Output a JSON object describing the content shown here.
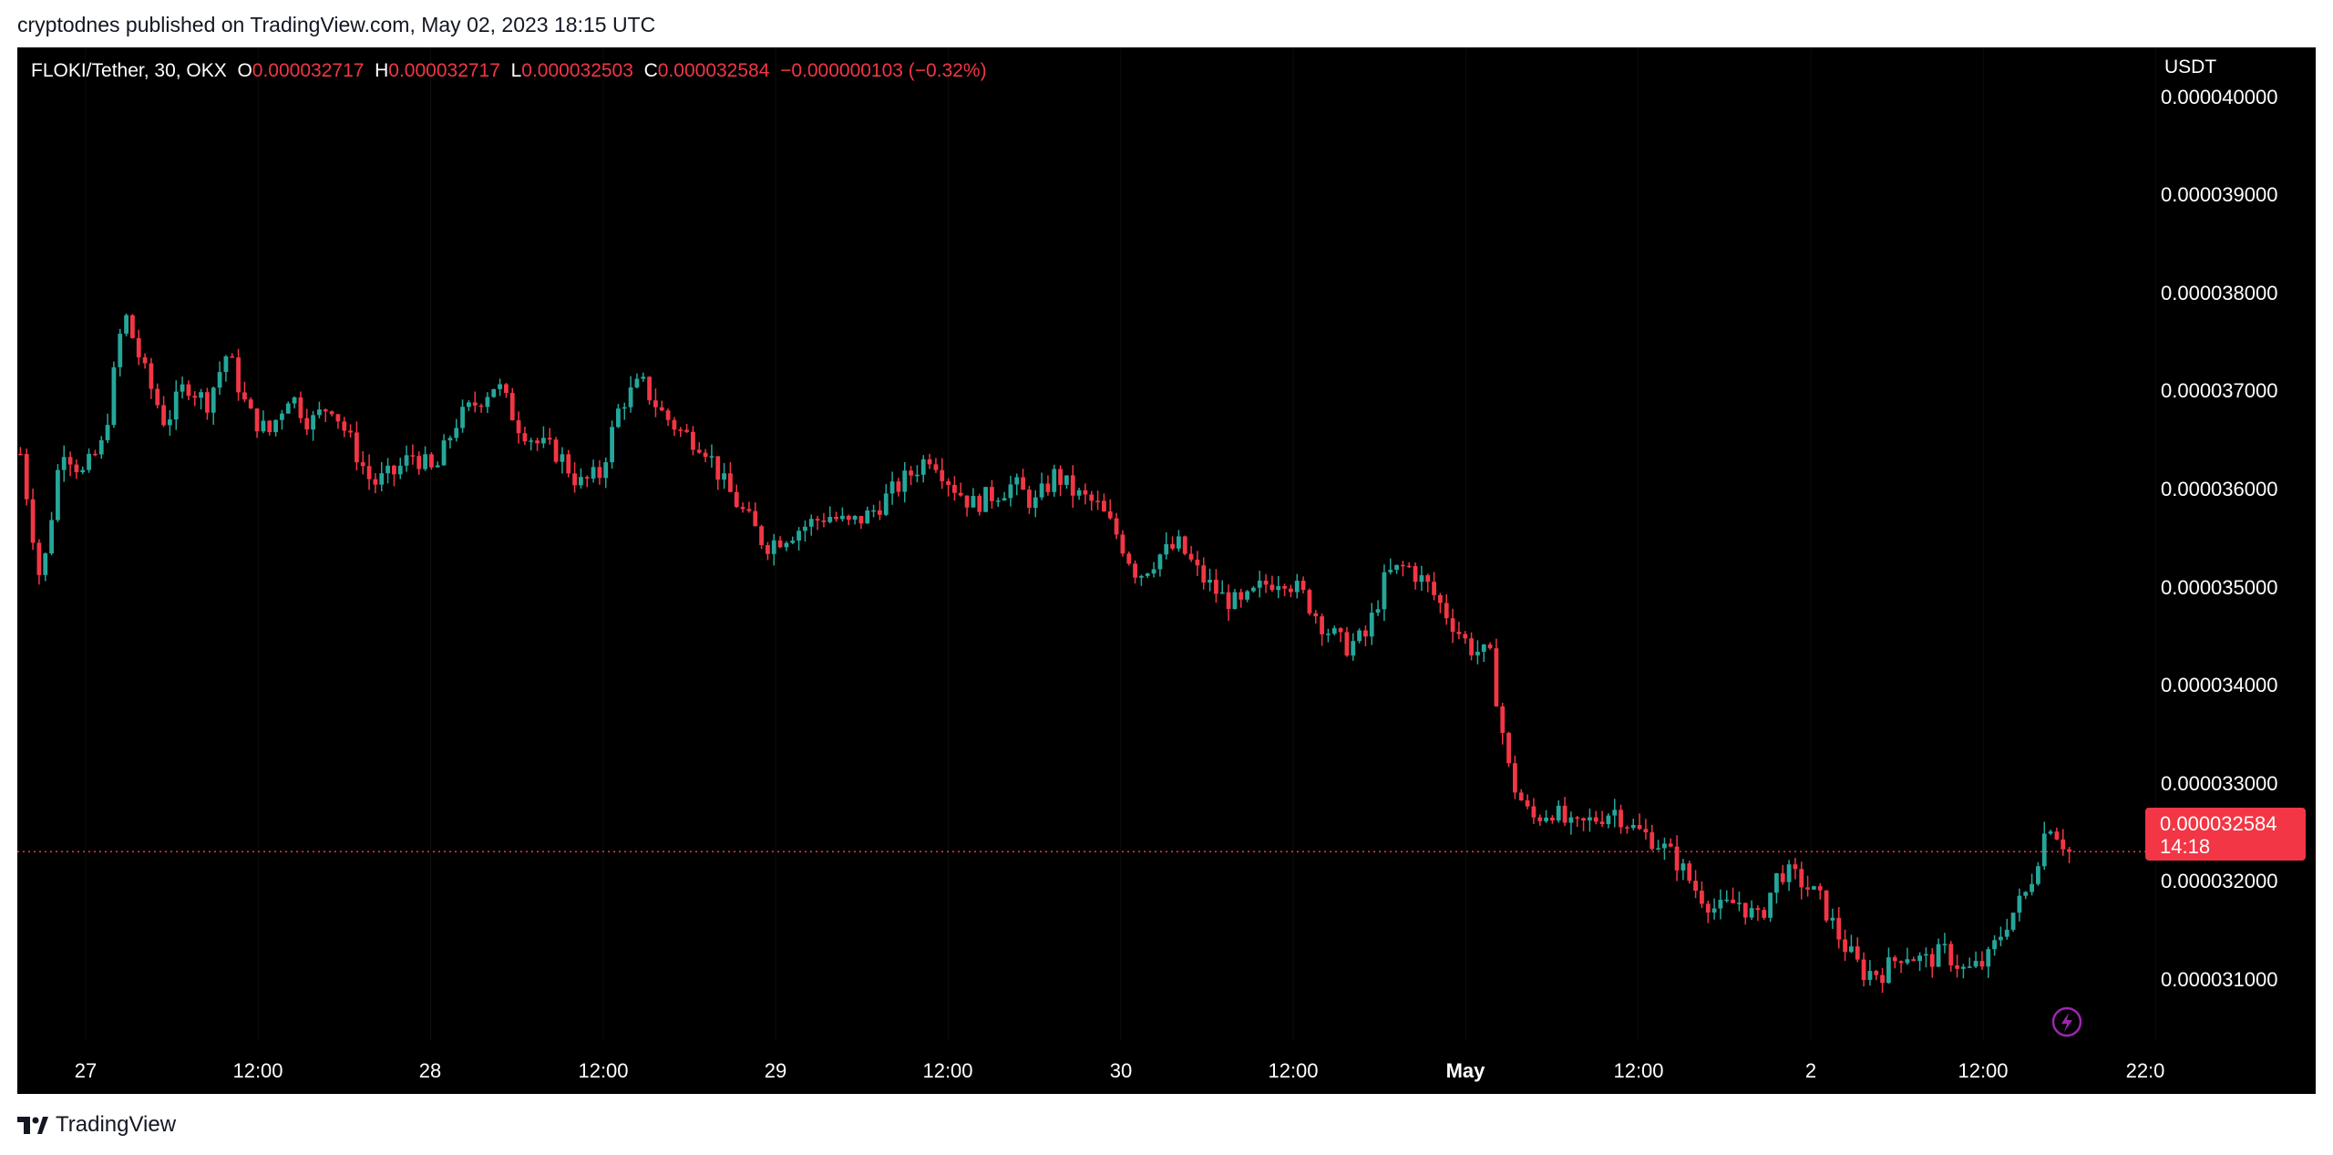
{
  "header": {
    "published": "cryptodnes published on TradingView.com, May 02, 2023 18:15 UTC"
  },
  "legend": {
    "symbol": "FLOKI/Tether, 30, OKX",
    "o_label": "O",
    "o_value": "0.000032717",
    "h_label": "H",
    "h_value": "0.000032717",
    "l_label": "L",
    "l_value": "0.000032503",
    "c_label": "C",
    "c_value": "0.000032584",
    "change": "−0.000000103 (−0.32%)"
  },
  "axis": {
    "currency": "USDT",
    "y_ticks": [
      "0.000040000",
      "0.000039000",
      "0.000038000",
      "0.000037000",
      "0.000036000",
      "0.000035000",
      "0.000034000",
      "0.000033000",
      "0.000032000",
      "0.000031000"
    ],
    "x_ticks": [
      "27",
      "12:00",
      "28",
      "12:00",
      "29",
      "12:00",
      "30",
      "12:00",
      "May",
      "12:00",
      "2",
      "12:00",
      "22:0"
    ]
  },
  "last_price": {
    "value": "0.000032584",
    "countdown": "14:18"
  },
  "footer": {
    "brand": "TradingView"
  },
  "colors": {
    "up": "#26a69a",
    "down": "#f23645",
    "background": "#000000",
    "axis_text": "#ffffff"
  },
  "icons": {
    "flash": "lightning-bolt-icon",
    "logo": "tradingview-logo-icon"
  },
  "chart_data": {
    "type": "candlestick",
    "interval": "30",
    "ylim": [
      3.02e-05,
      4.05e-05
    ],
    "x_range_hours": [
      0,
      136.5
    ],
    "y_ticks": [
      4e-05,
      3.9e-05,
      3.8e-05,
      3.7e-05,
      3.6e-05,
      3.5e-05,
      3.4e-05,
      3.3e-05,
      3.2e-05,
      3.1e-05
    ],
    "x_ticks": [
      {
        "label": "27",
        "hour": 12
      },
      {
        "label": "12:00",
        "hour": 24
      },
      {
        "label": "28",
        "hour": 36
      },
      {
        "label": "12:00",
        "hour": 48
      },
      {
        "label": "29",
        "hour": 60
      },
      {
        "label": "12:00",
        "hour": 72
      },
      {
        "label": "30",
        "hour": 84
      },
      {
        "label": "12:00",
        "hour": 96
      },
      {
        "label": "May",
        "hour": 108
      },
      {
        "label": "12:00",
        "hour": 120
      },
      {
        "label": "2",
        "hour": 132
      },
      {
        "label": "12:00",
        "hour": 144
      },
      {
        "label": "22:0",
        "hour": 154
      }
    ],
    "last_close": 3.2584e-05,
    "path_points": [
      [
        0,
        36.5
      ],
      [
        1,
        35.2
      ],
      [
        2,
        36.6
      ],
      [
        3,
        36.3
      ],
      [
        4,
        36.6
      ],
      [
        5,
        37.9
      ],
      [
        6,
        37.3
      ],
      [
        7,
        36.8
      ],
      [
        8,
        37.2
      ],
      [
        9,
        37.0
      ],
      [
        10,
        37.5
      ],
      [
        11,
        36.9
      ],
      [
        12,
        36.7
      ],
      [
        13,
        37.1
      ],
      [
        14,
        36.8
      ],
      [
        15,
        37.0
      ],
      [
        16,
        36.6
      ],
      [
        17,
        36.2
      ],
      [
        18,
        36.3
      ],
      [
        19,
        36.5
      ],
      [
        20,
        36.3
      ],
      [
        21,
        36.8
      ],
      [
        22,
        37.0
      ],
      [
        23,
        37.2
      ],
      [
        24,
        36.8
      ],
      [
        25,
        36.6
      ],
      [
        26,
        36.5
      ],
      [
        27,
        36.2
      ],
      [
        28,
        36.3
      ],
      [
        29,
        37.0
      ],
      [
        30,
        37.2
      ],
      [
        31,
        36.9
      ],
      [
        32,
        36.7
      ],
      [
        33,
        36.6
      ],
      [
        34,
        36.2
      ],
      [
        35,
        35.9
      ],
      [
        36,
        35.6
      ],
      [
        37,
        35.7
      ],
      [
        38,
        35.8
      ],
      [
        39,
        35.9
      ],
      [
        40,
        35.8
      ],
      [
        41,
        35.9
      ],
      [
        42,
        36.1
      ],
      [
        43,
        36.3
      ],
      [
        44,
        36.5
      ],
      [
        45,
        36.2
      ],
      [
        46,
        36.0
      ],
      [
        47,
        36.1
      ],
      [
        48,
        36.2
      ],
      [
        49,
        36.0
      ],
      [
        50,
        36.3
      ],
      [
        51,
        36.1
      ],
      [
        52,
        36.0
      ],
      [
        53,
        35.7
      ],
      [
        54,
        35.3
      ],
      [
        55,
        35.5
      ],
      [
        56,
        35.6
      ],
      [
        57,
        35.3
      ],
      [
        58,
        35.1
      ],
      [
        59,
        35.0
      ],
      [
        60,
        35.2
      ],
      [
        61,
        35.3
      ],
      [
        62,
        35.1
      ],
      [
        63,
        34.8
      ],
      [
        64,
        34.6
      ],
      [
        65,
        34.7
      ],
      [
        66,
        35.3
      ],
      [
        67,
        35.4
      ],
      [
        68,
        35.2
      ],
      [
        69,
        34.9
      ],
      [
        70,
        34.6
      ],
      [
        71,
        34.5
      ],
      [
        72,
        33.3
      ],
      [
        73,
        32.9
      ],
      [
        74,
        33.0
      ],
      [
        75,
        32.8
      ],
      [
        76,
        32.9
      ],
      [
        77,
        33.0
      ],
      [
        78,
        32.8
      ],
      [
        79,
        32.7
      ],
      [
        80,
        32.5
      ],
      [
        81,
        32.2
      ],
      [
        82,
        32.0
      ],
      [
        83,
        32.1
      ],
      [
        84,
        31.9
      ],
      [
        85,
        32.4
      ],
      [
        86,
        32.3
      ],
      [
        87,
        32.1
      ],
      [
        88,
        31.7
      ],
      [
        89,
        31.4
      ],
      [
        90,
        31.4
      ],
      [
        91,
        31.6
      ],
      [
        92,
        31.5
      ],
      [
        93,
        31.6
      ],
      [
        94,
        31.4
      ],
      [
        95,
        31.5
      ],
      [
        96,
        31.9
      ],
      [
        97,
        32.2
      ],
      [
        98,
        32.9
      ],
      [
        99,
        32.58
      ]
    ]
  }
}
